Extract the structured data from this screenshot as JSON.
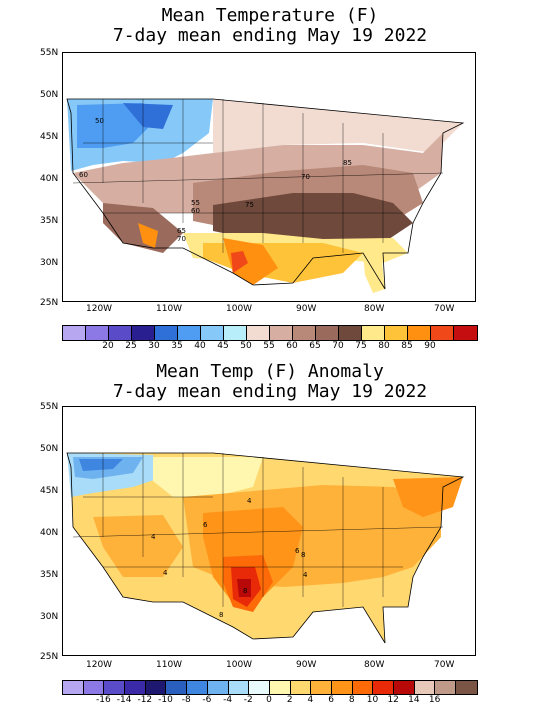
{
  "panels": [
    {
      "id": "temp",
      "title_line1": "Mean Temperature (F)",
      "title_line2": "7-day mean ending May 19 2022",
      "lat_labels": [
        "55N",
        "50N",
        "45N",
        "40N",
        "35N",
        "30N",
        "25N"
      ],
      "lon_labels": [
        "120W",
        "110W",
        "100W",
        "90W",
        "80W",
        "70W"
      ],
      "colorbar": {
        "colors": [
          "#b7a6f0",
          "#8c79e6",
          "#5a4bc8",
          "#2a1f90",
          "#2f6fd8",
          "#4f9df2",
          "#86c8f8",
          "#b8eefa",
          "#f2dcd2",
          "#d6afa2",
          "#b88878",
          "#9a6a5c",
          "#6f4a3c",
          "#ffe98a",
          "#ffc33a",
          "#ff9010",
          "#f04818",
          "#c40e10"
        ],
        "labels": [
          "20",
          "25",
          "30",
          "35",
          "40",
          "45",
          "50",
          "55",
          "60",
          "65",
          "70",
          "75",
          "80",
          "85",
          "90"
        ]
      },
      "contour_labels": [
        "50",
        "60",
        "55",
        "60",
        "65",
        "70",
        "75",
        "70",
        "85"
      ]
    },
    {
      "id": "anom",
      "title_line1": "Mean Temp (F) Anomaly",
      "title_line2": "7-day mean ending May 19 2022",
      "lat_labels": [
        "55N",
        "50N",
        "45N",
        "40N",
        "35N",
        "30N",
        "25N"
      ],
      "lon_labels": [
        "120W",
        "110W",
        "100W",
        "90W",
        "80W",
        "70W"
      ],
      "colorbar": {
        "colors": [
          "#b7a6f0",
          "#8c79e6",
          "#5a4bc8",
          "#3a2aa8",
          "#1e1870",
          "#2a5fc0",
          "#3e86e0",
          "#6fb2f0",
          "#a8dcf8",
          "#e8fafc",
          "#fff6b0",
          "#ffd870",
          "#ffb23a",
          "#ff9418",
          "#ff6a08",
          "#e82a08",
          "#b80808",
          "#e8c8b8",
          "#c09a88",
          "#7a5444"
        ],
        "labels": [
          "-16",
          "-14",
          "-12",
          "-10",
          "-8",
          "-6",
          "-4",
          "-2",
          "0",
          "2",
          "4",
          "6",
          "8",
          "10",
          "12",
          "14",
          "16"
        ]
      },
      "contour_labels": [
        "4",
        "4",
        "6",
        "4",
        "6",
        "8",
        "8",
        "4",
        "8"
      ]
    }
  ]
}
